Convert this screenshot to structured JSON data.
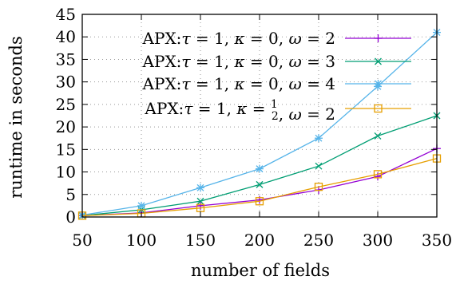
{
  "chart_data": {
    "type": "line",
    "xlabel": "number of fields",
    "ylabel": "runtime in seconds",
    "x": [
      50,
      100,
      150,
      200,
      250,
      300,
      350
    ],
    "xlim": [
      50,
      350
    ],
    "ylim": [
      0,
      45
    ],
    "xticks": [
      "50",
      "100",
      "150",
      "200",
      "250",
      "300",
      "350"
    ],
    "yticks": [
      "0",
      "5",
      "10",
      "15",
      "20",
      "25",
      "30",
      "35",
      "40",
      "45"
    ],
    "grid": true,
    "legend_position": "top-left",
    "series": [
      {
        "name": "APX:τ = 1, κ = 0, ω = 2",
        "legend_parts": [
          "APX:",
          "τ",
          " = 1, ",
          "κ",
          " = 0, ",
          "ω",
          " = 2"
        ],
        "color": "#9400d3",
        "marker": "plus",
        "values": [
          0.3,
          0.9,
          2.5,
          3.8,
          6.0,
          9.0,
          15.2
        ]
      },
      {
        "name": "APX:τ = 1, κ = 0, ω = 3",
        "legend_parts": [
          "APX:",
          "τ",
          " = 1, ",
          "κ",
          " = 0, ",
          "ω",
          " = 3"
        ],
        "color": "#009e73",
        "marker": "cross",
        "values": [
          0.3,
          1.6,
          3.5,
          7.2,
          11.3,
          18.0,
          22.5
        ]
      },
      {
        "name": "APX:τ = 1, κ = 0, ω = 4",
        "legend_parts": [
          "APX:",
          "τ",
          " = 1, ",
          "κ",
          " = 0, ",
          "ω",
          " = 4"
        ],
        "color": "#56b4e9",
        "marker": "star",
        "values": [
          0.4,
          2.5,
          6.5,
          10.7,
          17.5,
          29.0,
          41.0
        ]
      },
      {
        "name": "APX:τ = 1, κ = 1/2, ω = 2",
        "legend_parts": [
          "APX:",
          "τ",
          " = 1, ",
          "κ",
          " = ",
          "1/2",
          ", ",
          "ω",
          " = 2"
        ],
        "color": "#e69f00",
        "marker": "square",
        "values": [
          0.3,
          0.8,
          2.0,
          3.5,
          6.7,
          9.5,
          13.0
        ]
      }
    ]
  }
}
